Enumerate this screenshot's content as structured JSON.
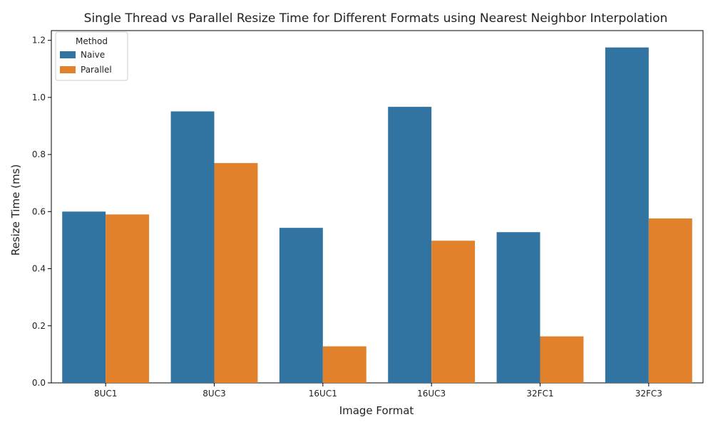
{
  "chart_data": {
    "type": "bar",
    "title": "Single Thread vs Parallel Resize Time for Different Formats using Nearest Neighbor Interpolation",
    "xlabel": "Image Format",
    "ylabel": "Resize Time (ms)",
    "categories": [
      "8UC1",
      "8UC3",
      "16UC1",
      "16UC3",
      "32FC1",
      "32FC3"
    ],
    "series": [
      {
        "name": "Naive",
        "color": "#3274a1",
        "values": [
          0.6,
          0.951,
          0.543,
          0.967,
          0.528,
          1.175
        ]
      },
      {
        "name": "Parallel",
        "color": "#e1812c",
        "values": [
          0.59,
          0.77,
          0.128,
          0.498,
          0.163,
          0.576
        ]
      }
    ],
    "ylim": [
      0,
      1.234
    ],
    "yticks": [
      "0.0",
      "0.2",
      "0.4",
      "0.6",
      "0.8",
      "1.0",
      "1.2"
    ],
    "grid": false,
    "legend": {
      "title": "Method",
      "placement": "top-left"
    }
  }
}
